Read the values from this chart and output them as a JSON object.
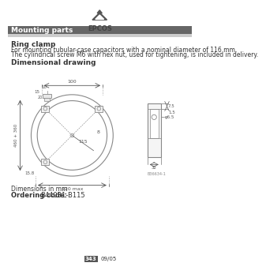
{
  "title_logo": "EPCOS",
  "header_text": "Mounting parts",
  "header_bg": "#666666",
  "header_text_color": "#ffffff",
  "subheader_bg": "#cccccc",
  "section_title": "Ring clamp",
  "desc_line1": "For mounting tubular-case capacitors with a nominal diameter of 116 mm.",
  "desc_line2": "The cylindrical screw M6 with hex nut, used for tightening, is included in delivery.",
  "drawing_title": "Dimensional drawing",
  "dim_note": "Dimensions in mm",
  "ordering_label": "Ordering code:",
  "ordering_code": "B44031-B115",
  "page_number": "343",
  "page_date": "09/05",
  "bg_color": "#ffffff",
  "line_color": "#888888",
  "text_color": "#333333",
  "drawing_note": "B36634-1"
}
